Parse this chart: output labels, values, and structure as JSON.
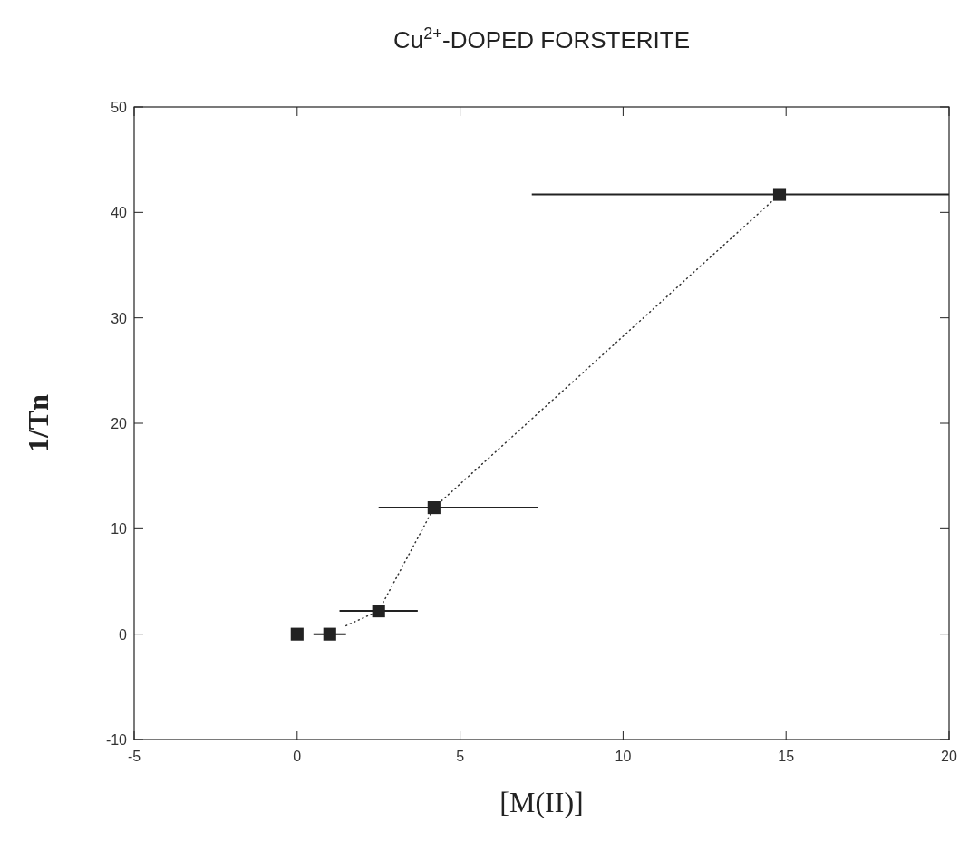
{
  "chart_data": {
    "type": "scatter",
    "title": "Cu$^{2+}$-DOPED FORSTERITE",
    "xlabel": "[M(II)]",
    "ylabel": "1/Tn",
    "xlim": [
      -5,
      20
    ],
    "ylim": [
      -10,
      50
    ],
    "xticks": [
      -5,
      0,
      5,
      10,
      15,
      20
    ],
    "yticks": [
      -10,
      0,
      10,
      20,
      30,
      40,
      50
    ],
    "grid": false,
    "marker": "square",
    "series": [
      {
        "type": "line",
        "color": "#333333",
        "line_style": "dotted",
        "marker": "none",
        "x": [
          1.5,
          2.5,
          4.2,
          14.8
        ],
        "values": [
          0.8,
          2.2,
          12,
          41.7
        ]
      },
      {
        "color": "#222222",
        "x": [
          0,
          1,
          2.5,
          4.2,
          14.8
        ],
        "values": [
          0,
          0,
          2.2,
          12,
          41.7
        ],
        "xerrors": [
          null,
          [
            0.5,
            1.5
          ],
          [
            1.3,
            3.7
          ],
          [
            2.5,
            7.4
          ],
          [
            7.2,
            20
          ]
        ]
      }
    ]
  }
}
